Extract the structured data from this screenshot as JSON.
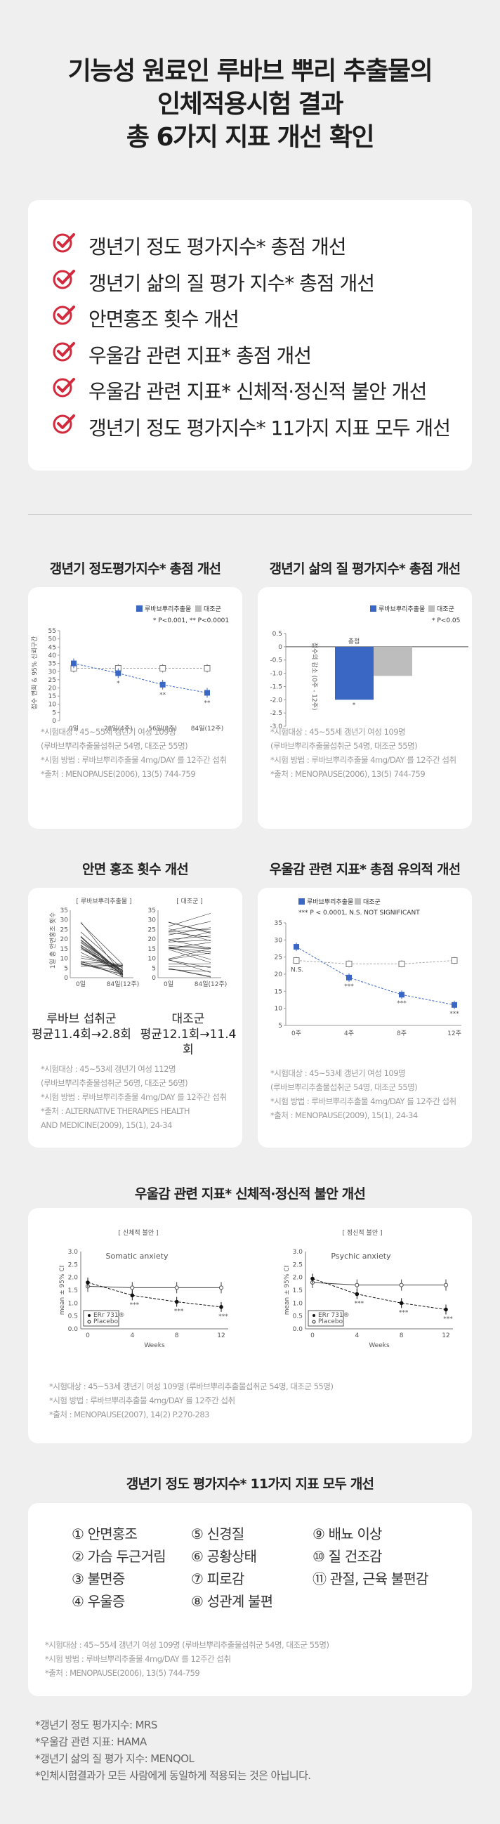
{
  "header": {
    "line1": "기능성 원료인 루바브 뿌리 추출물의",
    "line2": "인체적용시험 결과",
    "line3": "총 6가지 지표 개선 확인"
  },
  "improvements": [
    "갱년기 정도 평가지수* 총점 개선",
    "갱년기 삶의 질 평가 지수* 총점 개선",
    "안면홍조 횟수 개선",
    "우울감 관련 지표* 총점 개선",
    "우울감 관련 지표* 신체적·정신적 불안 개선",
    "갱년기 정도 평가지수* 11가지 지표 모두 개선"
  ],
  "colors": {
    "accent_red": "#d22a3c",
    "series_blue": "#3a66c4",
    "placebo_gray": "#bdbdbd"
  },
  "mrs": {
    "title": "갱년기 정도평가지수* 총점 개선",
    "legend_a": "루바브뿌리추출물",
    "legend_b": "대조군",
    "sig": "* P<0.001, ** P<0.0001",
    "ylabel": "점수 변화 & 95% 신뢰구간",
    "xticks": [
      "0일",
      "28일(4주)",
      "56일(8주)",
      "84일(12주)"
    ],
    "yticks": [
      "0",
      "5",
      "10",
      "15",
      "20",
      "25",
      "30",
      "35",
      "40",
      "45",
      "50",
      "55"
    ],
    "notes": [
      "*시험대상 : 45~55세 갱년기 여성 109명",
      "(루바브뿌리추출물섭취군 54명, 대조군 55명)",
      "*시험 방법 : 루바브뿌리추출물 4mg/DAY 를 12주간 섭취",
      "*출처 : MENOPAUSE(2006), 13(5) 744-759"
    ]
  },
  "menqol": {
    "title": "갱년기 삶의 질 평가지수* 총점 개선",
    "legend_a": "루바브뿌리추출물",
    "legend_b": "대조군",
    "sig": "* P<0.05",
    "ylabel": "점수의 감소 (0주 - 12주)",
    "yticks": [
      "0.5",
      "0",
      "-0.5",
      "-1.0",
      "-1.5",
      "-2.0",
      "-2.5",
      "-3.0"
    ],
    "bar_label": "총점",
    "star": "*",
    "notes": [
      "*시험대상 : 45~55세 갱년기 여성 109명",
      "(루바브뿌리추출물섭취군 54명, 대조군 55명)",
      "*시험 방법 : 루바브뿌리추출물 4mg/DAY 를 12주간 섭취",
      "*출처 : MENOPAUSE(2006), 13(5) 744-759"
    ]
  },
  "flush": {
    "title": "안면 홍조 횟수 개선",
    "panel_a": "[ 루바브뿌리추출물 ]",
    "panel_b": "[ 대조군 ]",
    "ylabel": "1일 총 안면홍조 횟수",
    "xticks": [
      "0일",
      "84일(12주)"
    ],
    "yticks": [
      "0",
      "5",
      "10",
      "15",
      "20",
      "25",
      "30",
      "35"
    ],
    "group_a": "루바브 섭취군",
    "group_a_val": "평균11.4회→2.8회",
    "group_b": "대조군",
    "group_b_val": "평균12.1회→11.4회",
    "notes": [
      "*시험대상 : 45~53세 갱년기 여성 112명",
      "(루바브뿌리추출물섭취군 56명, 대조군 56명)",
      "*시험 방법 : 루바브뿌리추출물 4mg/DAY 를 12주간 섭취",
      "*출처 : ALTERNATIVE THERAPIES HEALTH",
      "AND MEDICINE(2009), 15(1), 24-34"
    ]
  },
  "hama": {
    "title": "우울감 관련 지표* 총점 유의적 개선",
    "legend_a": "루바브뿌리추출물",
    "legend_b": "대조군",
    "sig": "*** P < 0.0001, N.S. NOT SIGNIFICANT",
    "ns": "N.S.",
    "xticks": [
      "0주",
      "4주",
      "8주",
      "12주"
    ],
    "yticks": [
      "5",
      "10",
      "15",
      "20",
      "25",
      "30",
      "35"
    ],
    "notes": [
      "*시험대상 : 45~53세 갱년기 여성 109명",
      "(루바브뿌리추출물섭취군 54명, 대조군 55명)",
      "*시험 방법 : 루바브뿌리추출물 4mg/DAY 를 12주간 섭취",
      "*출처 : MENOPAUSE(2009), 15(1), 24-34"
    ]
  },
  "anxiety": {
    "title": "우울감 관련 지표* 신체적·정신적 불안 개선",
    "panel_a": "[ 신체적 불안 ]",
    "panel_b": "[ 정신적 불안 ]",
    "chart_a": "Somatic anxiety",
    "chart_b": "Psychic anxiety",
    "ylabel": "mean ± 95% CI",
    "xlabel": "Weeks",
    "xticks": [
      "0",
      "4",
      "8",
      "12"
    ],
    "yticks": [
      "0.0",
      "0.5",
      "1.0",
      "1.5",
      "2.0",
      "2.5",
      "3.0"
    ],
    "leg_a": "ERr 731®",
    "leg_b": "Placebo",
    "notes": [
      "*시험대상 : 45~53세 갱년기 여성 109명 (루바브뿌리추출물섭취군 54명, 대조군 55명)",
      "*시험 방법 : 루바브뿌리추출물 4mg/DAY 를 12주간 섭취",
      "*출처 : MENOPAUSE(2007), 14(2) P.270-283"
    ]
  },
  "indicators": {
    "title": "갱년기 정도 평가지수* 11가지 지표 모두 개선",
    "items": [
      "① 안면홍조",
      "② 가슴 두근거림",
      "③ 불면증",
      "④ 우울증",
      "⑤ 신경질",
      "⑥ 공황상태",
      "⑦ 피로감",
      "⑧ 성관계 불편",
      "⑨ 배뇨 이상",
      "⑩ 질 건조감",
      "⑪ 관절, 근육 불편감"
    ],
    "notes": [
      "*시험대상 : 45~55세 갱년기 여성 109명 (루바브뿌리추출물섭취군 54명, 대조군 55명)",
      "*시험 방법 : 루바브뿌리추출물 4mg/DAY 를 12주간 섭취",
      "*출처 : MENOPAUSE(2006), 13(5) 744-759"
    ]
  },
  "footnotes": [
    "*갱년기 정도 평가지수: MRS",
    "*우울감 관련 지표: HAMA",
    "*갱년기 삶의 질 평가 지수: MENQOL",
    "*인체시험결과가 모든 사람에게 동일하게 적용되는 것은 아닙니다."
  ],
  "chart_data": [
    {
      "type": "line",
      "title": "갱년기 정도평가지수* 총점 개선",
      "x": [
        "0일",
        "28일(4주)",
        "56일(8주)",
        "84일(12주)"
      ],
      "ylim": [
        0,
        55
      ],
      "series": [
        {
          "name": "루바브뿌리추출물",
          "values": [
            35,
            29,
            22,
            17
          ]
        },
        {
          "name": "대조군",
          "values": [
            32,
            32,
            32,
            32
          ]
        }
      ]
    },
    {
      "type": "bar",
      "title": "갱년기 삶의 질 평가지수* 총점 개선",
      "categories": [
        "총점"
      ],
      "ylim": [
        -3.0,
        0.5
      ],
      "series": [
        {
          "name": "루바브뿌리추출물",
          "values": [
            -2.0
          ]
        },
        {
          "name": "대조군",
          "values": [
            -1.1
          ]
        }
      ]
    },
    {
      "type": "line",
      "title": "우울감 관련 지표* 총점 유의적 개선",
      "x": [
        "0주",
        "4주",
        "8주",
        "12주"
      ],
      "ylim": [
        5,
        35
      ],
      "series": [
        {
          "name": "루바브뿌리추출물",
          "values": [
            28,
            19,
            14,
            11
          ]
        },
        {
          "name": "대조군",
          "values": [
            24,
            23,
            23,
            24
          ]
        }
      ]
    },
    {
      "type": "line",
      "title": "Somatic anxiety",
      "x": [
        0,
        4,
        8,
        12
      ],
      "ylim": [
        0,
        3
      ],
      "series": [
        {
          "name": "ERr 731®",
          "values": [
            1.8,
            1.3,
            1.05,
            0.85
          ]
        },
        {
          "name": "Placebo",
          "values": [
            1.65,
            1.6,
            1.6,
            1.6
          ]
        }
      ]
    },
    {
      "type": "line",
      "title": "Psychic anxiety",
      "x": [
        0,
        4,
        8,
        12
      ],
      "ylim": [
        0,
        3
      ],
      "series": [
        {
          "name": "ERr 731®",
          "values": [
            1.95,
            1.35,
            1.0,
            0.75
          ]
        },
        {
          "name": "Placebo",
          "values": [
            1.8,
            1.7,
            1.7,
            1.7
          ]
        }
      ]
    }
  ]
}
